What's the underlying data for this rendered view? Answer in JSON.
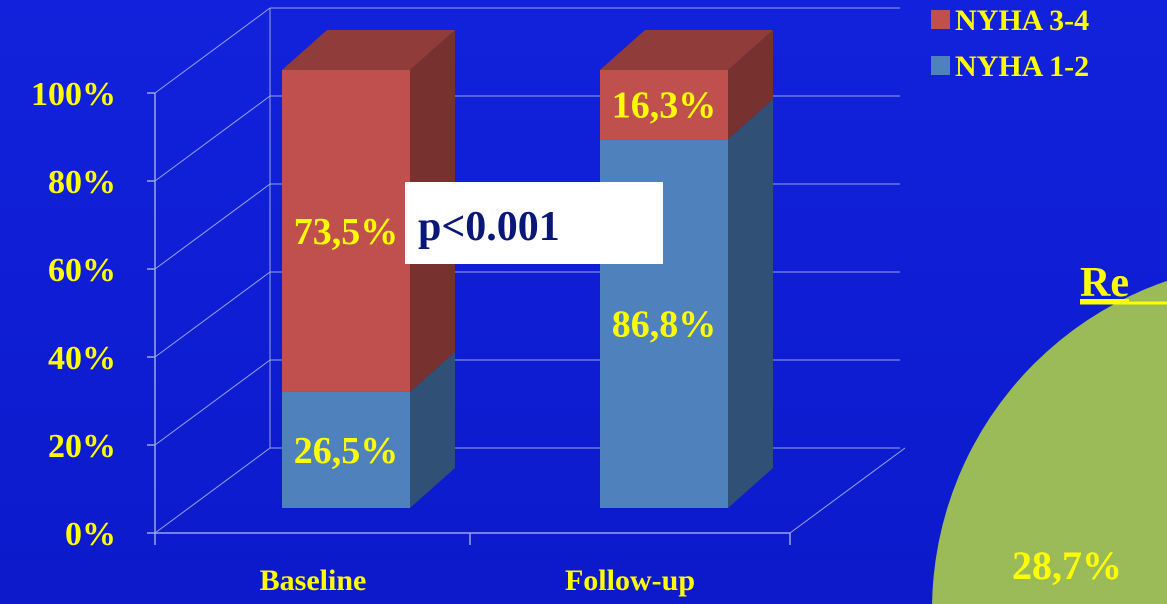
{
  "chart_data": {
    "type": "bar",
    "stacked": true,
    "three_d": true,
    "categories": [
      "Baseline",
      "Follow-up"
    ],
    "series": [
      {
        "name": "NYHA 1-2",
        "values": [
          26.5,
          86.8
        ],
        "labels": [
          "26,5%",
          "86,8%"
        ],
        "color": "#4f81bd"
      },
      {
        "name": "NYHA 3-4",
        "values": [
          73.5,
          16.3
        ],
        "labels": [
          "73,5%",
          "16,3%"
        ],
        "color": "#c0504d"
      }
    ],
    "y_ticks": [
      "0%",
      "20%",
      "40%",
      "60%",
      "80%",
      "100%"
    ],
    "ylim": [
      0,
      100
    ],
    "grid": true,
    "legend_position": "top-right",
    "annotation": "p<0.001"
  },
  "partial_panel": {
    "title_fragment": "Re",
    "pie_label": "28,7%",
    "pie_color": "#9bbb59"
  },
  "colors": {
    "background": "#0f1fd6",
    "text": "#ffff00",
    "grid": "#9aa4e6"
  }
}
